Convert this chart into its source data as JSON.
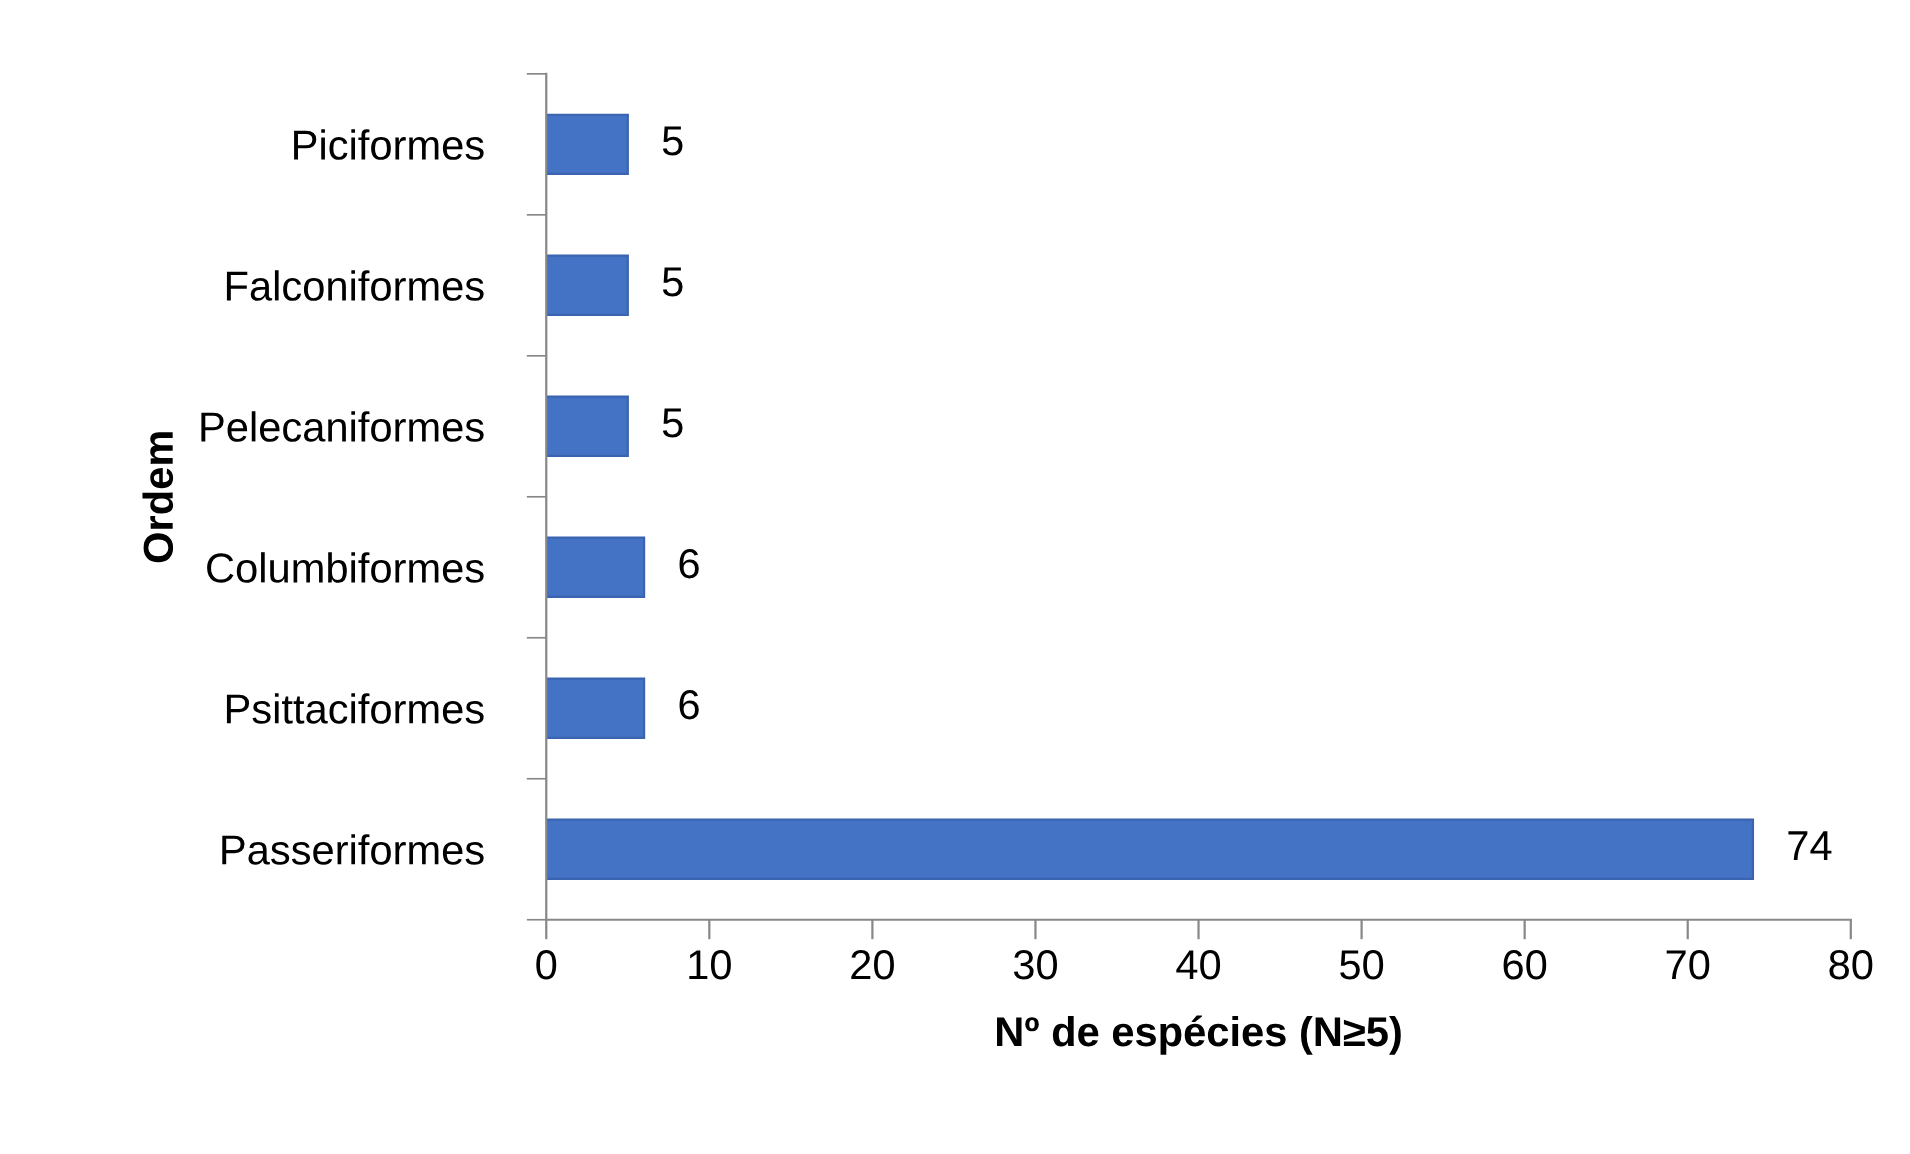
{
  "chart_data": {
    "type": "bar",
    "orientation": "horizontal",
    "categories": [
      "Piciformes",
      "Falconiformes",
      "Pelecaniformes",
      "Columbiformes",
      "Psittaciformes",
      "Passeriformes"
    ],
    "values": [
      5,
      5,
      5,
      6,
      6,
      74
    ],
    "color": "#4472c4",
    "xlabel": "Nº de espécies (N≥5)",
    "ylabel": "Ordem",
    "xlim": [
      0,
      80
    ],
    "xticks": [
      0,
      10,
      20,
      30,
      40,
      50,
      60,
      70,
      80
    ],
    "data_labels": true,
    "grid": false,
    "legend": false
  }
}
